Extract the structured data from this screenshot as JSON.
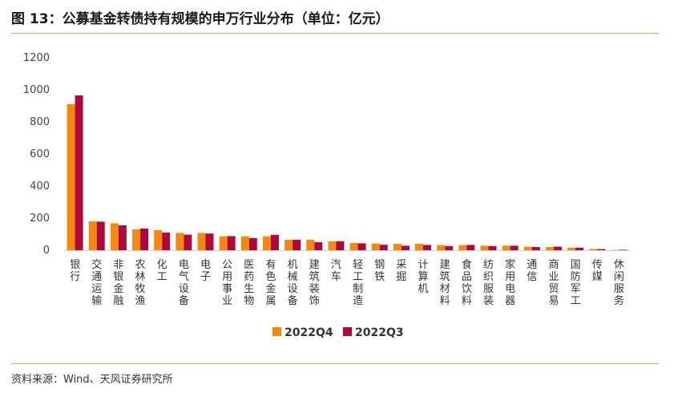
{
  "title": "图 13：公募基金转债持有规模的申万行业分布（单位：亿元）",
  "source": "资料来源：Wind、天风证券研究所",
  "colors": {
    "s1": "#f5880f",
    "s2": "#b0083a",
    "axis": "#d0d0d0",
    "rule": "#d7a85c"
  },
  "chart_data": {
    "type": "bar",
    "title": "公募基金转债持有规模的申万行业分布（单位：亿元）",
    "xlabel": "",
    "ylabel": "",
    "ylim": [
      0,
      1200
    ],
    "yticks": [
      0,
      200,
      400,
      600,
      800,
      1000,
      1200
    ],
    "grid": false,
    "legend": "bottom",
    "categories": [
      "银行",
      "交通运输",
      "非银金融",
      "农林牧渔",
      "化工",
      "电气设备",
      "电子",
      "公用事业",
      "医药生物",
      "有色金属",
      "机械设备",
      "建筑装饰",
      "汽车",
      "轻工制造",
      "钢铁",
      "采掘",
      "计算机",
      "建筑材料",
      "食品饮料",
      "纺织服装",
      "家用电器",
      "通信",
      "商业贸易",
      "国防军工",
      "传媒",
      "休闲服务"
    ],
    "series": [
      {
        "name": "2022Q4",
        "values": [
          910,
          180,
          168,
          130,
          125,
          108,
          108,
          87,
          87,
          87,
          65,
          65,
          55,
          45,
          42,
          40,
          40,
          32,
          32,
          28,
          28,
          22,
          20,
          15,
          8,
          2
        ]
      },
      {
        "name": "2022Q3",
        "values": [
          965,
          178,
          155,
          135,
          110,
          97,
          104,
          88,
          76,
          96,
          65,
          50,
          56,
          43,
          34,
          28,
          33,
          26,
          33,
          26,
          28,
          20,
          22,
          16,
          7,
          3
        ]
      }
    ]
  }
}
